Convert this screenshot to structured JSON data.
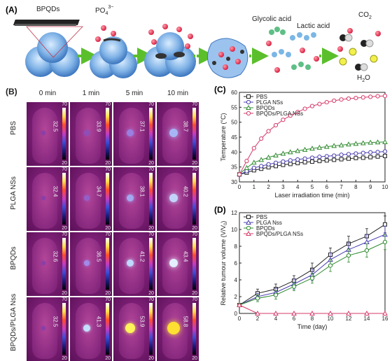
{
  "panel_a": {
    "label": "(A)",
    "bpqds": "BPQDs",
    "phosphate": "PO",
    "phosphate_sub": "4",
    "phosphate_sup": "3−",
    "glycolic": "Glycolic acid",
    "lactic": "Lactic acid",
    "co2": "CO",
    "co2_sub": "2",
    "h2o": "H",
    "h2o_sub": "2",
    "h2o_end": "O"
  },
  "panel_b": {
    "label": "(B)",
    "times": [
      "0 min",
      "1 min",
      "5 min",
      "10 min"
    ],
    "groups": [
      "PBS",
      "PLGA NSs",
      "BPQDs",
      "BPQDs/PLGA Nss"
    ],
    "scale_max": "70",
    "scale_min": "20",
    "temps": [
      [
        "32.5",
        "33.9",
        "37.1",
        "38.7"
      ],
      [
        "32.4",
        "34.7",
        "38.1",
        "40.2"
      ],
      [
        "32.6",
        "36.5",
        "41.2",
        "43.4"
      ],
      [
        "32.5",
        "41.3",
        "53.9",
        "58.8"
      ]
    ],
    "spot_colors": [
      [
        "#8a3fa8",
        "#8f4fb8",
        "#9a7fe0",
        "#a6b6f4"
      ],
      [
        "#8a3fa8",
        "#9460c8",
        "#a3a8f0",
        "#c3d4fa"
      ],
      [
        "#8a3fa8",
        "#a08be8",
        "#c0d8fc",
        "#e4f0ff"
      ],
      [
        "#8a3fa8",
        "#c4e0ff",
        "#fff35a",
        "#ffe032"
      ]
    ]
  },
  "chart_data": [
    {
      "panel": "(C)",
      "type": "line",
      "xlabel": "Laser irradiation time (min)",
      "ylabel": "Temperature (°C)",
      "xlim": [
        0,
        10
      ],
      "ylim": [
        30,
        60
      ],
      "xticks": [
        0,
        1,
        2,
        3,
        4,
        5,
        6,
        7,
        8,
        9,
        10
      ],
      "yticks": [
        30,
        35,
        40,
        45,
        50,
        55,
        60
      ],
      "x": [
        0,
        0.5,
        1,
        1.5,
        2,
        2.5,
        3,
        3.5,
        4,
        4.5,
        5,
        5.5,
        6,
        6.5,
        7,
        7.5,
        8,
        8.5,
        9,
        9.5,
        10
      ],
      "legend_position": "top-left",
      "series": [
        {
          "name": "PBS",
          "color": "#222222",
          "marker": "square",
          "values": [
            32.5,
            33.1,
            33.9,
            34.4,
            34.9,
            35.3,
            35.7,
            36.0,
            36.3,
            36.6,
            36.8,
            37.0,
            37.2,
            37.4,
            37.6,
            37.8,
            38.0,
            38.1,
            38.3,
            38.5,
            38.7
          ]
        },
        {
          "name": "PLGA NSs",
          "color": "#4a3fb0",
          "marker": "circle",
          "values": [
            32.4,
            33.6,
            34.7,
            35.3,
            35.9,
            36.4,
            36.8,
            37.2,
            37.5,
            37.8,
            38.1,
            38.4,
            38.6,
            38.8,
            39.1,
            39.3,
            39.5,
            39.7,
            39.9,
            40.0,
            40.2
          ]
        },
        {
          "name": "BPQDs",
          "color": "#2f8a2f",
          "marker": "triangle",
          "values": [
            32.6,
            34.7,
            36.5,
            37.4,
            38.2,
            38.9,
            39.5,
            40.0,
            40.4,
            40.8,
            41.2,
            41.5,
            41.8,
            42.1,
            42.3,
            42.6,
            42.8,
            43.0,
            43.2,
            43.3,
            43.4
          ]
        },
        {
          "name": "BPQDs/PLGA NSs",
          "color": "#d63a6a",
          "marker": "circle",
          "values": [
            32.5,
            37.0,
            41.3,
            44.5,
            47.0,
            49.0,
            50.8,
            52.2,
            53.4,
            54.5,
            55.4,
            56.1,
            56.7,
            57.2,
            57.6,
            57.9,
            58.1,
            58.3,
            58.5,
            58.7,
            58.8
          ]
        }
      ]
    },
    {
      "panel": "(D)",
      "type": "line",
      "xlabel": "Time (day)",
      "ylabel": "Relative tumour volume (V/V",
      "ylabel_sub": "0",
      "ylabel_end": ")",
      "xlim": [
        0,
        16
      ],
      "ylim": [
        0,
        12
      ],
      "xticks": [
        0,
        2,
        4,
        6,
        8,
        10,
        12,
        14,
        16
      ],
      "yticks": [
        0,
        2,
        4,
        6,
        8,
        10,
        12
      ],
      "x": [
        0,
        2,
        4,
        6,
        8,
        10,
        12,
        14,
        16
      ],
      "legend_position": "top-left",
      "series": [
        {
          "name": "PBS",
          "color": "#222222",
          "marker": "square",
          "values": [
            1.0,
            2.4,
            2.9,
            3.9,
            5.2,
            7.0,
            8.3,
            9.2,
            10.6
          ],
          "err": [
            0.2,
            0.5,
            0.6,
            0.6,
            0.8,
            0.8,
            0.9,
            0.9,
            1.0
          ]
        },
        {
          "name": "PLGA Nss",
          "color": "#4a3fb0",
          "marker": "triangle",
          "values": [
            1.0,
            2.0,
            2.5,
            3.5,
            4.6,
            6.4,
            7.6,
            8.5,
            9.4
          ],
          "err": [
            0.2,
            0.4,
            0.5,
            0.6,
            0.7,
            0.8,
            0.8,
            0.9,
            1.0
          ]
        },
        {
          "name": "BPQDs",
          "color": "#2f8a2f",
          "marker": "circle",
          "values": [
            1.0,
            1.8,
            2.2,
            3.2,
            4.2,
            5.7,
            6.9,
            7.5,
            8.5
          ],
          "err": [
            0.2,
            0.4,
            0.5,
            0.5,
            0.6,
            0.7,
            0.8,
            0.8,
            0.9
          ]
        },
        {
          "name": "BPQDs/PLGA NSs",
          "color": "#d63a6a",
          "marker": "triangle",
          "values": [
            1.0,
            0.0,
            0.0,
            0.0,
            0.0,
            0.0,
            0.0,
            0.0,
            0.0
          ],
          "err": [
            0.1,
            0,
            0,
            0,
            0,
            0,
            0,
            0,
            0
          ]
        }
      ]
    }
  ]
}
